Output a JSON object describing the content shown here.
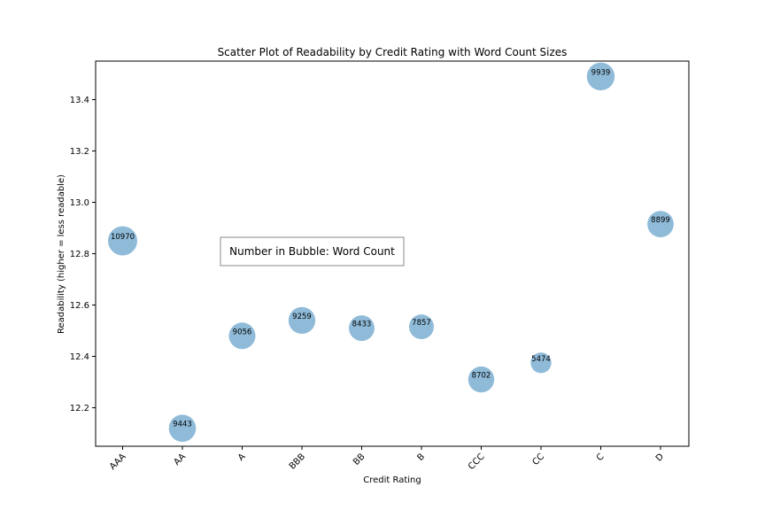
{
  "chart_data": {
    "type": "scatter",
    "title": "Scatter Plot of Readability by Credit Rating with Word Count Sizes",
    "xlabel": "Credit Rating",
    "ylabel": "Readability (higher = less readable)",
    "categories": [
      "AAA",
      "AA",
      "A",
      "BBB",
      "BB",
      "B",
      "CCC",
      "CC",
      "C",
      "D"
    ],
    "readability": [
      12.85,
      12.12,
      12.48,
      12.54,
      12.51,
      12.515,
      12.31,
      12.375,
      13.49,
      12.915
    ],
    "word_count": [
      10970,
      9443,
      9056,
      9259,
      8433,
      7857,
      8702,
      5474,
      9939,
      8899
    ],
    "ylim": [
      12.05,
      13.55
    ],
    "yticks": [
      "12.2",
      "12.4",
      "12.6",
      "12.8",
      "13.0",
      "13.2",
      "13.4"
    ],
    "grid": false,
    "annotation": "Number in Bubble: Word Count",
    "color": "#1f77b4"
  }
}
